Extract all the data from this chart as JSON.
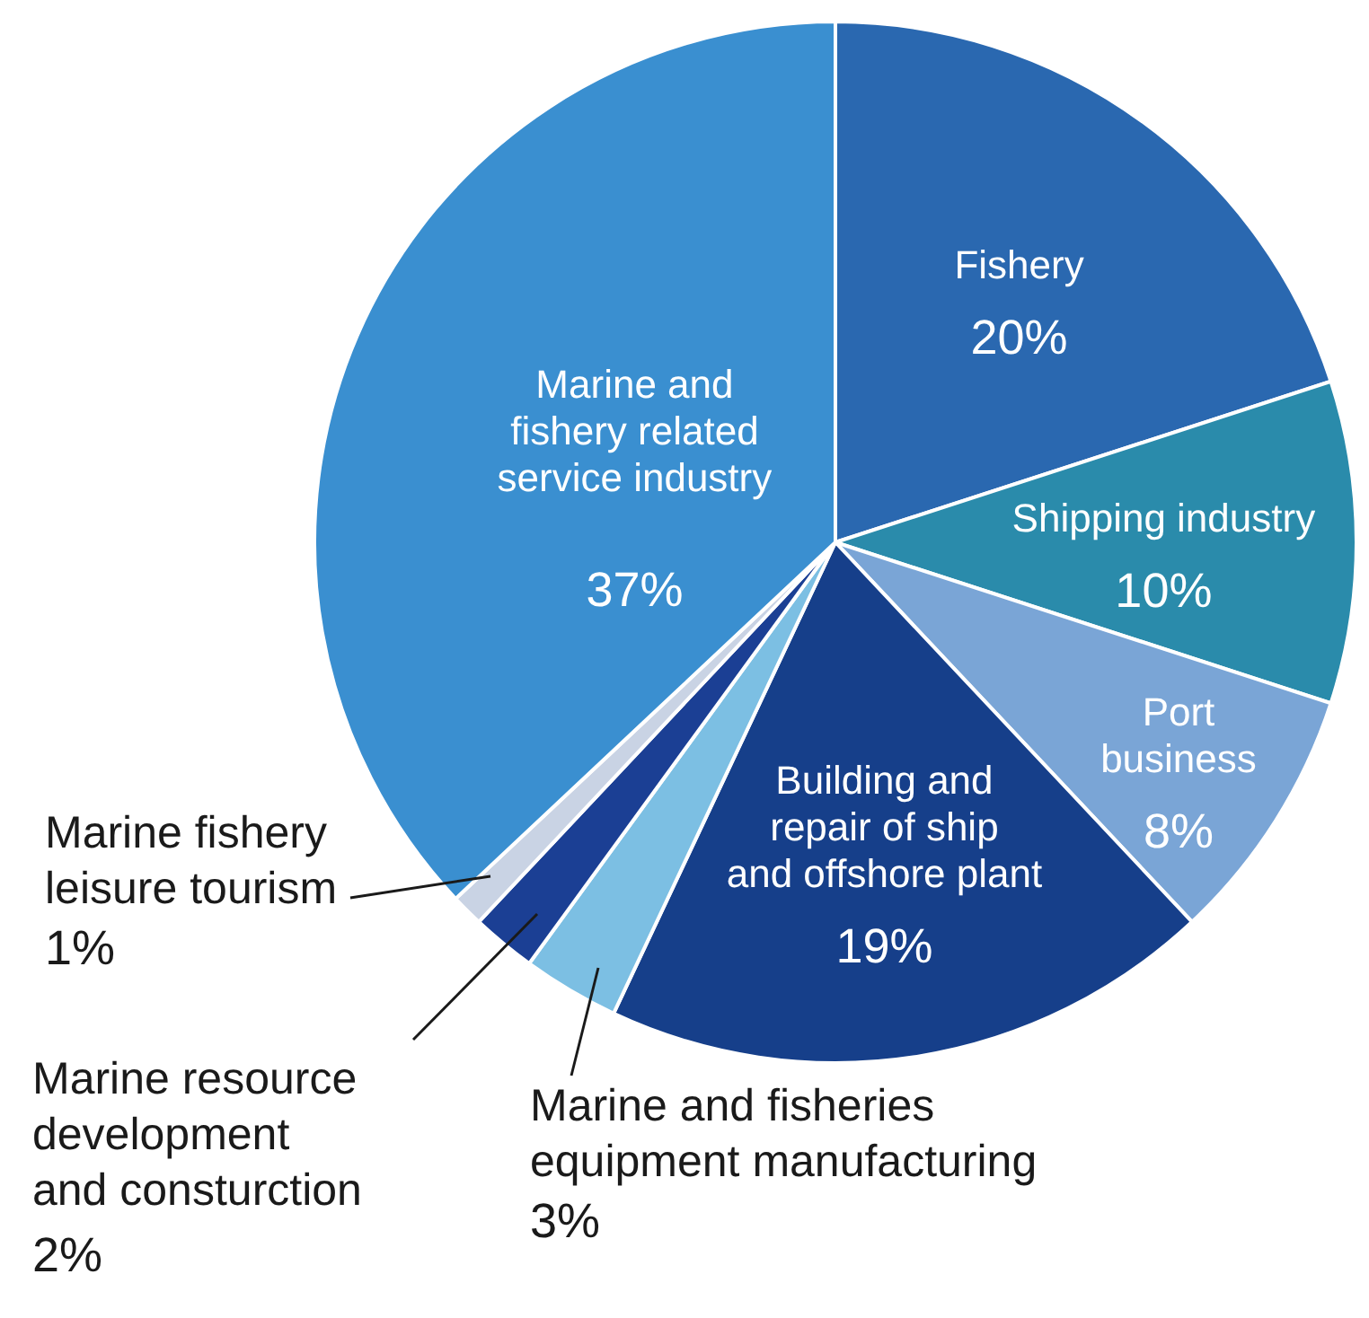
{
  "chart_data": {
    "type": "pie",
    "categories": [
      "Fishery",
      "Shipping industry",
      "Port business",
      "Building and repair of ship and offshore plant",
      "Marine and fisheries equipment manufacturing",
      "Marine resource development and consturction",
      "Marine fishery leisure tourism",
      "Marine and fishery related service industry"
    ],
    "values": [
      20,
      10,
      8,
      19,
      3,
      2,
      1,
      37
    ],
    "colors": [
      "#2a68b0",
      "#2a8bab",
      "#7aa5d6",
      "#163f8a",
      "#7cbfe3",
      "#1b3f94",
      "#c9d3e4",
      "#3a8fd0"
    ],
    "value_labels": [
      "20%",
      "10%",
      "8%",
      "19%",
      "3%",
      "2%",
      "1%",
      "37%"
    ]
  }
}
